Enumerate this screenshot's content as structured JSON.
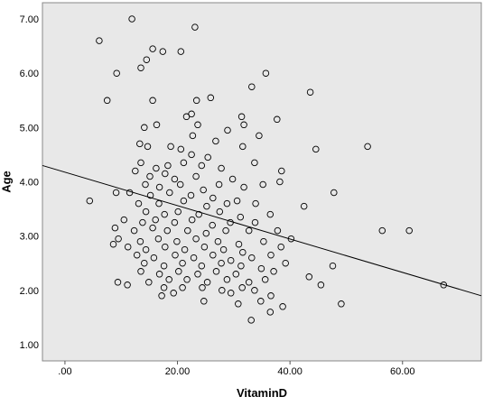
{
  "chart_data": {
    "type": "scatter",
    "title": "",
    "xlabel": "VitaminD",
    "ylabel": "Age",
    "xlim": [
      -4,
      74
    ],
    "ylim": [
      0.7,
      7.3
    ],
    "x_ticks": [
      0,
      20,
      40,
      60
    ],
    "x_tick_labels": [
      ".00",
      "20.00",
      "40.00",
      "60.00"
    ],
    "y_ticks": [
      1,
      2,
      3,
      4,
      5,
      6,
      7
    ],
    "y_tick_labels": [
      "1.00",
      "2.00",
      "3.00",
      "4.00",
      "5.00",
      "6.00",
      "7.00"
    ],
    "grid": false,
    "plot_background": "#e8e8e8",
    "marker": "open-circle",
    "fit_line": {
      "x": [
        -4,
        74
      ],
      "y": [
        4.3,
        1.9
      ]
    },
    "points": [
      [
        11.9,
        7.0
      ],
      [
        6.1,
        6.6
      ],
      [
        23.1,
        6.85
      ],
      [
        15.6,
        6.45
      ],
      [
        17.4,
        6.4
      ],
      [
        20.6,
        6.4
      ],
      [
        14.5,
        6.25
      ],
      [
        9.2,
        6.0
      ],
      [
        13.5,
        6.1
      ],
      [
        35.7,
        6.0
      ],
      [
        33.2,
        5.75
      ],
      [
        43.6,
        5.65
      ],
      [
        7.5,
        5.5
      ],
      [
        15.6,
        5.5
      ],
      [
        23.4,
        5.5
      ],
      [
        25.9,
        5.55
      ],
      [
        21.6,
        5.2
      ],
      [
        22.5,
        5.25
      ],
      [
        31.4,
        5.2
      ],
      [
        37.7,
        5.15
      ],
      [
        31.8,
        5.05
      ],
      [
        23.6,
        5.05
      ],
      [
        14.1,
        5.0
      ],
      [
        16.3,
        5.05
      ],
      [
        22.7,
        4.85
      ],
      [
        28.9,
        4.95
      ],
      [
        34.5,
        4.85
      ],
      [
        13.3,
        4.7
      ],
      [
        14.7,
        4.65
      ],
      [
        18.8,
        4.65
      ],
      [
        20.6,
        4.6
      ],
      [
        26.8,
        4.75
      ],
      [
        31.6,
        4.65
      ],
      [
        53.8,
        4.65
      ],
      [
        44.6,
        4.6
      ],
      [
        22.5,
        4.5
      ],
      [
        25.4,
        4.45
      ],
      [
        13.5,
        4.35
      ],
      [
        16.2,
        4.25
      ],
      [
        18.3,
        4.3
      ],
      [
        21.1,
        4.35
      ],
      [
        24.3,
        4.3
      ],
      [
        27.8,
        4.25
      ],
      [
        33.7,
        4.35
      ],
      [
        12.5,
        4.2
      ],
      [
        15.1,
        4.1
      ],
      [
        17.8,
        4.15
      ],
      [
        19.5,
        4.05
      ],
      [
        23.3,
        4.1
      ],
      [
        29.8,
        4.05
      ],
      [
        38.5,
        4.2
      ],
      [
        14.3,
        3.95
      ],
      [
        16.8,
        3.9
      ],
      [
        20.5,
        3.95
      ],
      [
        24.6,
        3.85
      ],
      [
        27.4,
        3.95
      ],
      [
        31.8,
        3.9
      ],
      [
        35.2,
        3.95
      ],
      [
        38.2,
        4.0
      ],
      [
        11.5,
        3.8
      ],
      [
        15.2,
        3.75
      ],
      [
        18.6,
        3.8
      ],
      [
        22.4,
        3.75
      ],
      [
        26.3,
        3.7
      ],
      [
        30.6,
        3.65
      ],
      [
        47.8,
        3.8
      ],
      [
        4.4,
        3.65
      ],
      [
        9.1,
        3.8
      ],
      [
        13.1,
        3.6
      ],
      [
        16.7,
        3.6
      ],
      [
        21.1,
        3.65
      ],
      [
        25.2,
        3.55
      ],
      [
        28.8,
        3.6
      ],
      [
        33.9,
        3.6
      ],
      [
        42.5,
        3.55
      ],
      [
        14.4,
        3.45
      ],
      [
        17.7,
        3.4
      ],
      [
        20.1,
        3.45
      ],
      [
        23.8,
        3.4
      ],
      [
        27.5,
        3.45
      ],
      [
        31.2,
        3.35
      ],
      [
        36.5,
        3.4
      ],
      [
        10.5,
        3.3
      ],
      [
        13.8,
        3.25
      ],
      [
        16.1,
        3.3
      ],
      [
        19.5,
        3.25
      ],
      [
        22.6,
        3.3
      ],
      [
        26.2,
        3.2
      ],
      [
        29.4,
        3.25
      ],
      [
        33.8,
        3.25
      ],
      [
        8.9,
        3.15
      ],
      [
        12.3,
        3.1
      ],
      [
        15.6,
        3.15
      ],
      [
        18.2,
        3.1
      ],
      [
        21.8,
        3.1
      ],
      [
        25.1,
        3.05
      ],
      [
        28.6,
        3.1
      ],
      [
        32.7,
        3.1
      ],
      [
        37.8,
        3.1
      ],
      [
        56.4,
        3.1
      ],
      [
        61.2,
        3.1
      ],
      [
        9.5,
        2.95
      ],
      [
        13.4,
        2.9
      ],
      [
        16.6,
        2.95
      ],
      [
        19.9,
        2.9
      ],
      [
        23.3,
        2.95
      ],
      [
        27.2,
        2.9
      ],
      [
        30.9,
        2.85
      ],
      [
        35.3,
        2.9
      ],
      [
        40.2,
        2.95
      ],
      [
        8.6,
        2.85
      ],
      [
        11.2,
        2.8
      ],
      [
        14.4,
        2.75
      ],
      [
        17.8,
        2.8
      ],
      [
        21.3,
        2.75
      ],
      [
        24.8,
        2.8
      ],
      [
        28.2,
        2.75
      ],
      [
        31.6,
        2.7
      ],
      [
        38.4,
        2.8
      ],
      [
        12.8,
        2.65
      ],
      [
        15.8,
        2.6
      ],
      [
        19.6,
        2.65
      ],
      [
        22.9,
        2.6
      ],
      [
        26.3,
        2.65
      ],
      [
        29.5,
        2.55
      ],
      [
        33.2,
        2.6
      ],
      [
        36.6,
        2.65
      ],
      [
        14.1,
        2.5
      ],
      [
        17.6,
        2.45
      ],
      [
        20.9,
        2.5
      ],
      [
        24.3,
        2.45
      ],
      [
        27.8,
        2.5
      ],
      [
        31.3,
        2.45
      ],
      [
        34.9,
        2.4
      ],
      [
        39.2,
        2.5
      ],
      [
        13.5,
        2.35
      ],
      [
        16.8,
        2.3
      ],
      [
        20.2,
        2.35
      ],
      [
        23.6,
        2.3
      ],
      [
        26.9,
        2.35
      ],
      [
        30.4,
        2.3
      ],
      [
        37.1,
        2.35
      ],
      [
        47.6,
        2.45
      ],
      [
        18.5,
        2.2
      ],
      [
        21.7,
        2.2
      ],
      [
        25.3,
        2.15
      ],
      [
        28.8,
        2.2
      ],
      [
        32.7,
        2.15
      ],
      [
        35.6,
        2.2
      ],
      [
        43.4,
        2.25
      ],
      [
        9.4,
        2.15
      ],
      [
        11.1,
        2.1
      ],
      [
        14.9,
        2.15
      ],
      [
        17.6,
        2.05
      ],
      [
        20.9,
        2.05
      ],
      [
        24.4,
        2.05
      ],
      [
        27.9,
        2.0
      ],
      [
        31.5,
        2.05
      ],
      [
        33.7,
        2.0
      ],
      [
        45.5,
        2.1
      ],
      [
        67.3,
        2.1
      ],
      [
        19.3,
        1.95
      ],
      [
        29.5,
        1.95
      ],
      [
        36.6,
        1.9
      ],
      [
        17.2,
        1.9
      ],
      [
        24.7,
        1.8
      ],
      [
        30.8,
        1.75
      ],
      [
        34.8,
        1.8
      ],
      [
        38.7,
        1.7
      ],
      [
        49.1,
        1.75
      ],
      [
        36.5,
        1.6
      ],
      [
        33.1,
        1.45
      ]
    ]
  }
}
